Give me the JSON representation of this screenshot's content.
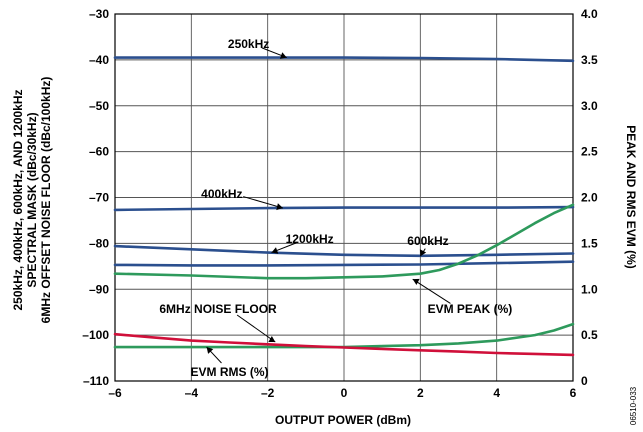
{
  "chart_data": {
    "type": "line",
    "xlabel": "OUTPUT POWER (dBm)",
    "ylabel_left": [
      "250kHz, 400kHz, 600kHz, AND 1200kHz",
      "SPECTRAL MASK (dBc/30kHz)",
      "6MHz OFFSET NOISE FLOOR (dBc/100kHz)"
    ],
    "ylabel_right": "PEAK AND RMS EVM (%)",
    "figure_id": "06510-033",
    "xlim": [
      -6,
      6
    ],
    "ylim_left": [
      -110,
      -30
    ],
    "ylim_right": [
      0,
      4.0
    ],
    "x_ticks": [
      -6,
      -4,
      -2,
      0,
      2,
      4,
      6
    ],
    "x_tick_labels": [
      "–6",
      "–4",
      "–2",
      "0",
      "2",
      "4",
      "6"
    ],
    "y_left_ticks": [
      -30,
      -40,
      -50,
      -60,
      -70,
      -80,
      -90,
      -100,
      -110
    ],
    "y_left_tick_labels": [
      "–30",
      "–40",
      "–50",
      "–60",
      "–70",
      "–80",
      "–90",
      "–100",
      "–110"
    ],
    "y_right_ticks": [
      4.0,
      3.5,
      3.0,
      2.5,
      2.0,
      1.5,
      1.0,
      0.5,
      0
    ],
    "y_right_tick_labels": [
      "4.0",
      "3.5",
      "3.0",
      "2.5",
      "2.0",
      "1.5",
      "1.0",
      "0.5",
      "0"
    ],
    "grid": true,
    "colors": {
      "mask": "#2b4f8e",
      "evm": "#2e9a5c",
      "noise": "#d0103a"
    },
    "series": [
      {
        "name": "250kHz",
        "axis": "left",
        "color": "mask",
        "x": [
          -6,
          -4,
          -2,
          0,
          2,
          4,
          5,
          6
        ],
        "y": [
          -39.5,
          -39.5,
          -39.5,
          -39.5,
          -39.6,
          -39.8,
          -40.0,
          -40.2
        ]
      },
      {
        "name": "400kHz",
        "axis": "left",
        "color": "mask",
        "x": [
          -6,
          -4,
          -2,
          0,
          2,
          4,
          6
        ],
        "y": [
          -72.7,
          -72.5,
          -72.3,
          -72.2,
          -72.2,
          -72.2,
          -72.1
        ]
      },
      {
        "name": "1200kHz",
        "axis": "left",
        "color": "mask",
        "x": [
          -6,
          -4,
          -2,
          0,
          2,
          4,
          6
        ],
        "y": [
          -80.6,
          -81.3,
          -82.0,
          -82.5,
          -82.7,
          -82.5,
          -82.2
        ]
      },
      {
        "name": "600kHz",
        "axis": "left",
        "color": "mask",
        "x": [
          -6,
          -4,
          -2,
          0,
          2,
          4,
          6
        ],
        "y": [
          -84.7,
          -84.8,
          -84.8,
          -84.7,
          -84.6,
          -84.3,
          -84.0
        ]
      },
      {
        "name": "EVM PEAK (%)",
        "axis": "right",
        "color": "evm",
        "x": [
          -6,
          -4,
          -2,
          -1,
          0,
          1,
          2,
          2.5,
          3,
          3.5,
          4,
          4.5,
          5,
          5.5,
          6
        ],
        "y": [
          1.17,
          1.15,
          1.12,
          1.12,
          1.13,
          1.14,
          1.17,
          1.21,
          1.28,
          1.37,
          1.48,
          1.6,
          1.72,
          1.83,
          1.92
        ]
      },
      {
        "name": "EVM RMS (%)",
        "axis": "right",
        "color": "evm",
        "x": [
          -6,
          -4,
          -2,
          0,
          1,
          2,
          3,
          4,
          5,
          5.5,
          6
        ],
        "y": [
          0.37,
          0.37,
          0.37,
          0.37,
          0.38,
          0.39,
          0.41,
          0.44,
          0.5,
          0.55,
          0.62
        ]
      },
      {
        "name": "6MHz NOISE FLOOR",
        "axis": "left",
        "color": "noise",
        "x": [
          -6,
          -5,
          -4,
          -3,
          -2,
          -1,
          0,
          1,
          2,
          3,
          4,
          5,
          6
        ],
        "y": [
          -99.8,
          -100.5,
          -101.2,
          -101.6,
          -102.0,
          -102.4,
          -102.7,
          -103.0,
          -103.3,
          -103.6,
          -103.9,
          -104.1,
          -104.3
        ]
      }
    ],
    "annotations": [
      {
        "text": "250kHz",
        "text_x": -2.5,
        "text_y": -36.5,
        "target_x": -1.5,
        "target_y": -39.5,
        "axis": "left"
      },
      {
        "text": "400kHz",
        "text_x": -3.2,
        "text_y": -69.2,
        "target_x": -1.6,
        "target_y": -72.3,
        "axis": "left"
      },
      {
        "text": "1200kHz",
        "text_x": -0.9,
        "text_y": -79.0,
        "target_x": -1.9,
        "target_y": -82.0,
        "axis": "left"
      },
      {
        "text": "600kHz",
        "text_x": 2.2,
        "text_y": -79.5,
        "target_x": 2.0,
        "target_y": -82.8,
        "axis": "left"
      },
      {
        "text": "EVM PEAK (%)",
        "text_x": 3.3,
        "text_y": -94.3,
        "target_x": 1.8,
        "target_y": -87.8,
        "axis": "left"
      },
      {
        "text": "6MHz NOISE FLOOR",
        "text_x": -3.3,
        "text_y": -94.3,
        "target_x": -1.8,
        "target_y": -101.5,
        "axis": "left"
      },
      {
        "text": "EVM RMS (%)",
        "text_x": -3.0,
        "text_y": -108.0,
        "target_x": -3.6,
        "target_y": -102.6,
        "axis": "left"
      }
    ]
  }
}
